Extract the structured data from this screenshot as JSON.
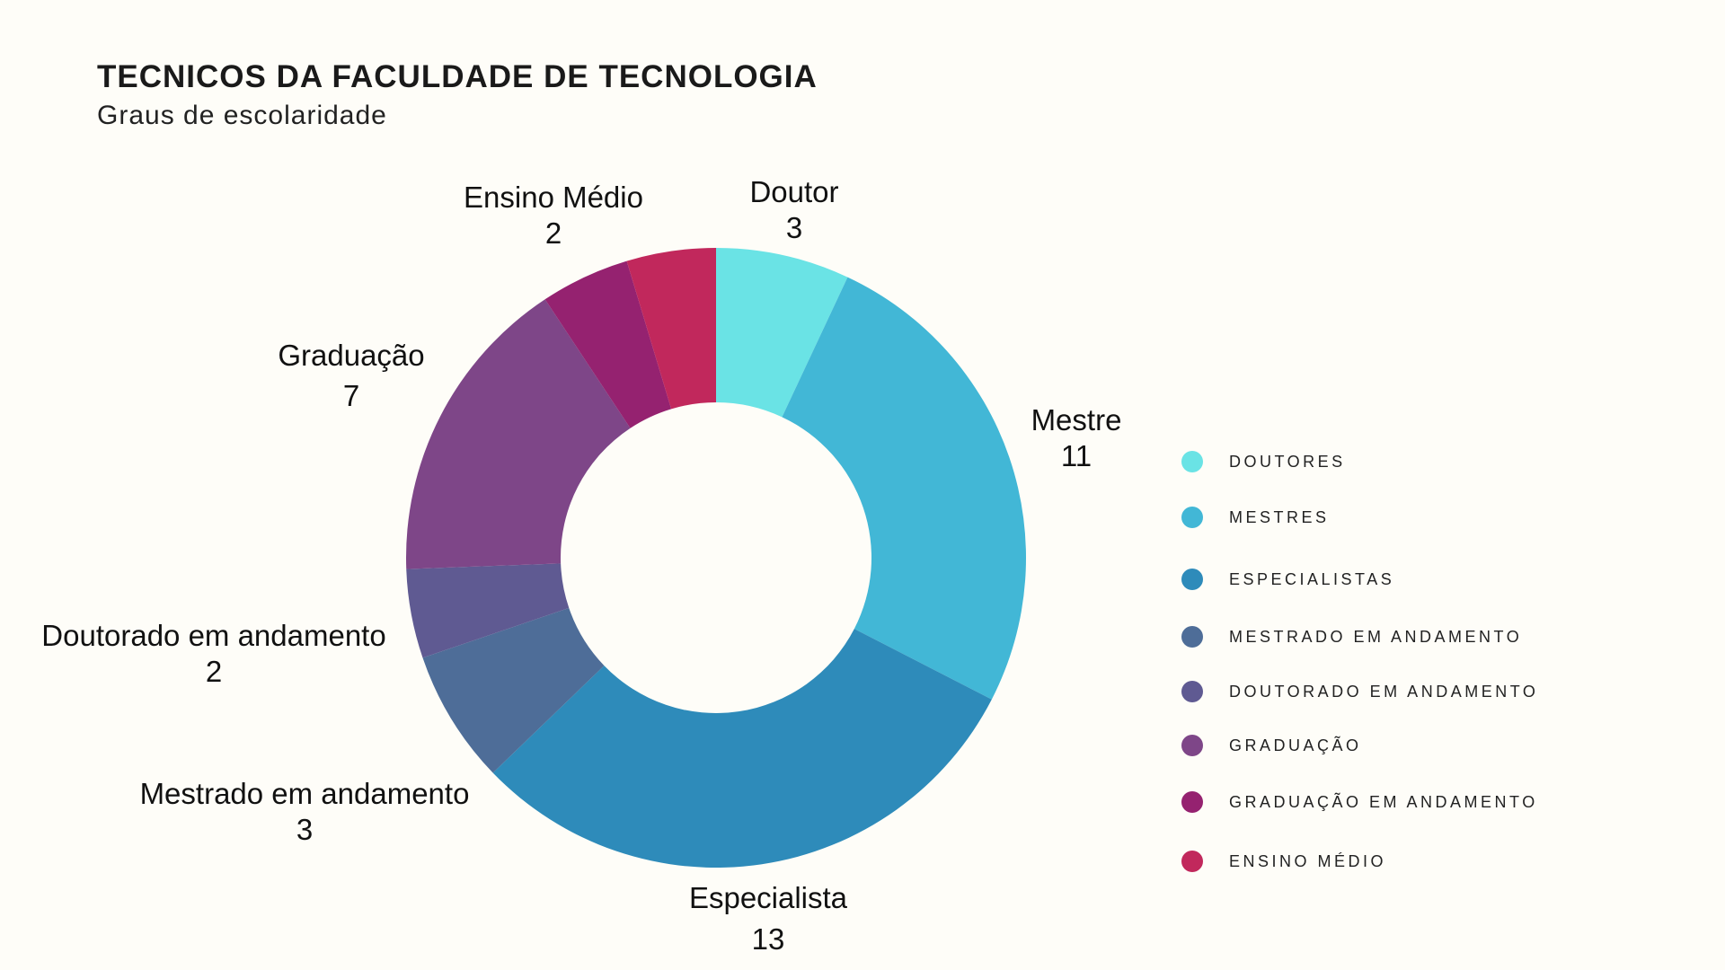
{
  "chart_data": {
    "type": "pie",
    "variant": "donut",
    "title": "TECNICOS DA FACULDADE DE TECNOLOGIA",
    "subtitle": "Graus de escolaridade",
    "slices": [
      {
        "label": "Doutor",
        "value": 3,
        "color": "#6ae3e5"
      },
      {
        "label": "Mestre",
        "value": 11,
        "color": "#42b7d6"
      },
      {
        "label": "Especialista",
        "value": 13,
        "color": "#2e8bba"
      },
      {
        "label": "Mestrado em andamento",
        "value": 3,
        "color": "#4e6d98"
      },
      {
        "label": "Doutorado em andamento",
        "value": 2,
        "color": "#5f5a92"
      },
      {
        "label": "Graduação",
        "value": 7,
        "color": "#7e4688"
      },
      {
        "label": "",
        "value": 2,
        "color": "#952270"
      },
      {
        "label": "Ensino Médio",
        "value": 2,
        "color": "#c1285c"
      }
    ],
    "legend": {
      "placement": "right",
      "entries": [
        {
          "label": "DOUTORES",
          "color": "#6ae3e5"
        },
        {
          "label": "MESTRES",
          "color": "#42b7d6"
        },
        {
          "label": "ESPECIALISTAS",
          "color": "#2e8bba"
        },
        {
          "label": "MESTRADO EM ANDAMENTO",
          "color": "#4e6d98"
        },
        {
          "label": "DOUTORADO EM ANDAMENTO",
          "color": "#5f5a92"
        },
        {
          "label": "GRADUAÇÃO",
          "color": "#7e4688"
        },
        {
          "label": "GRADUAÇÃO EM ANDAMENTO",
          "color": "#952270"
        },
        {
          "label": "ENSINO MÉDIO",
          "color": "#c1285c"
        }
      ]
    }
  }
}
